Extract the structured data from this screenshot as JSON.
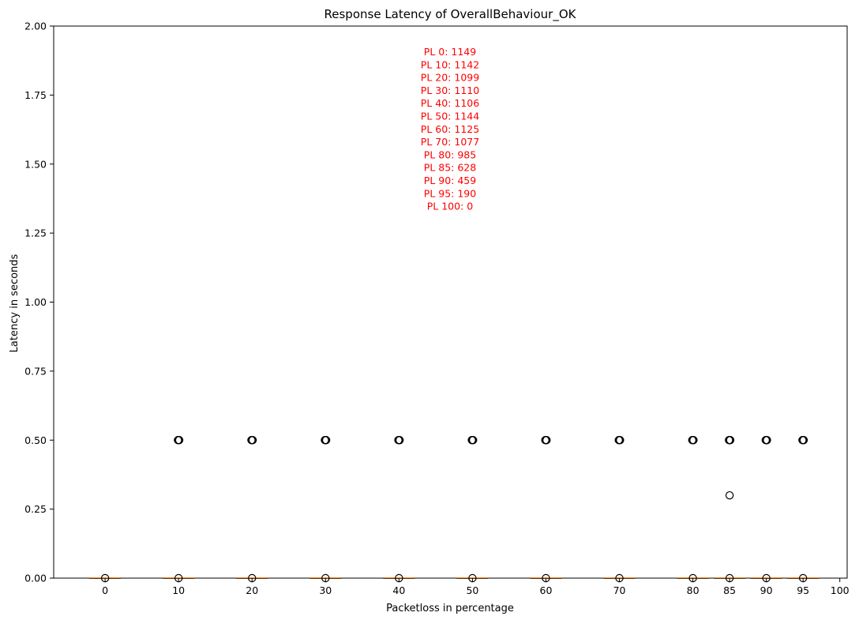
{
  "chart_data": {
    "type": "box",
    "title": "Response Latency of OverallBehaviour_OK",
    "xlabel": "Packetloss in percentage",
    "ylabel": "Latency in seconds",
    "ylim": [
      0,
      2.0
    ],
    "yticks": [
      0.0,
      0.25,
      0.5,
      0.75,
      1.0,
      1.25,
      1.5,
      1.75,
      2.0
    ],
    "ytick_labels": [
      "0.00",
      "0.25",
      "0.50",
      "0.75",
      "1.00",
      "1.25",
      "1.50",
      "1.75",
      "2.00"
    ],
    "xlim": [
      -7,
      101
    ],
    "grid": false,
    "annotation_color": "#ff0000",
    "box_median_color": "#ff7f0e",
    "groups": [
      {
        "x": 0,
        "label": "0",
        "outliers": [
          0.0
        ]
      },
      {
        "x": 10,
        "label": "10",
        "outliers": [
          0.5,
          0.0
        ]
      },
      {
        "x": 20,
        "label": "20",
        "outliers": [
          0.5,
          0.0
        ]
      },
      {
        "x": 30,
        "label": "30",
        "outliers": [
          0.5,
          0.0
        ]
      },
      {
        "x": 40,
        "label": "40",
        "outliers": [
          0.5,
          0.0
        ]
      },
      {
        "x": 50,
        "label": "50",
        "outliers": [
          0.5,
          0.0
        ]
      },
      {
        "x": 60,
        "label": "60",
        "outliers": [
          0.5,
          0.0
        ]
      },
      {
        "x": 70,
        "label": "70",
        "outliers": [
          0.5,
          0.0
        ]
      },
      {
        "x": 80,
        "label": "80",
        "outliers": [
          0.5,
          0.0
        ]
      },
      {
        "x": 85,
        "label": "85",
        "outliers": [
          0.5,
          0.3,
          0.0
        ]
      },
      {
        "x": 90,
        "label": "90",
        "outliers": [
          0.5,
          0.0
        ]
      },
      {
        "x": 95,
        "label": "95",
        "outliers": [
          0.5,
          0.0
        ]
      },
      {
        "x": 100,
        "label": "100",
        "outliers": []
      }
    ],
    "annotations": [
      "PL 0: 1149",
      "PL 10: 1142",
      "PL 20: 1099",
      "PL 30: 1110",
      "PL 40: 1106",
      "PL 50: 1144",
      "PL 60: 1125",
      "PL 70: 1077",
      "PL 80: 985",
      "PL 85: 628",
      "PL 90: 459",
      "PL 95: 190",
      "PL 100: 0"
    ]
  }
}
